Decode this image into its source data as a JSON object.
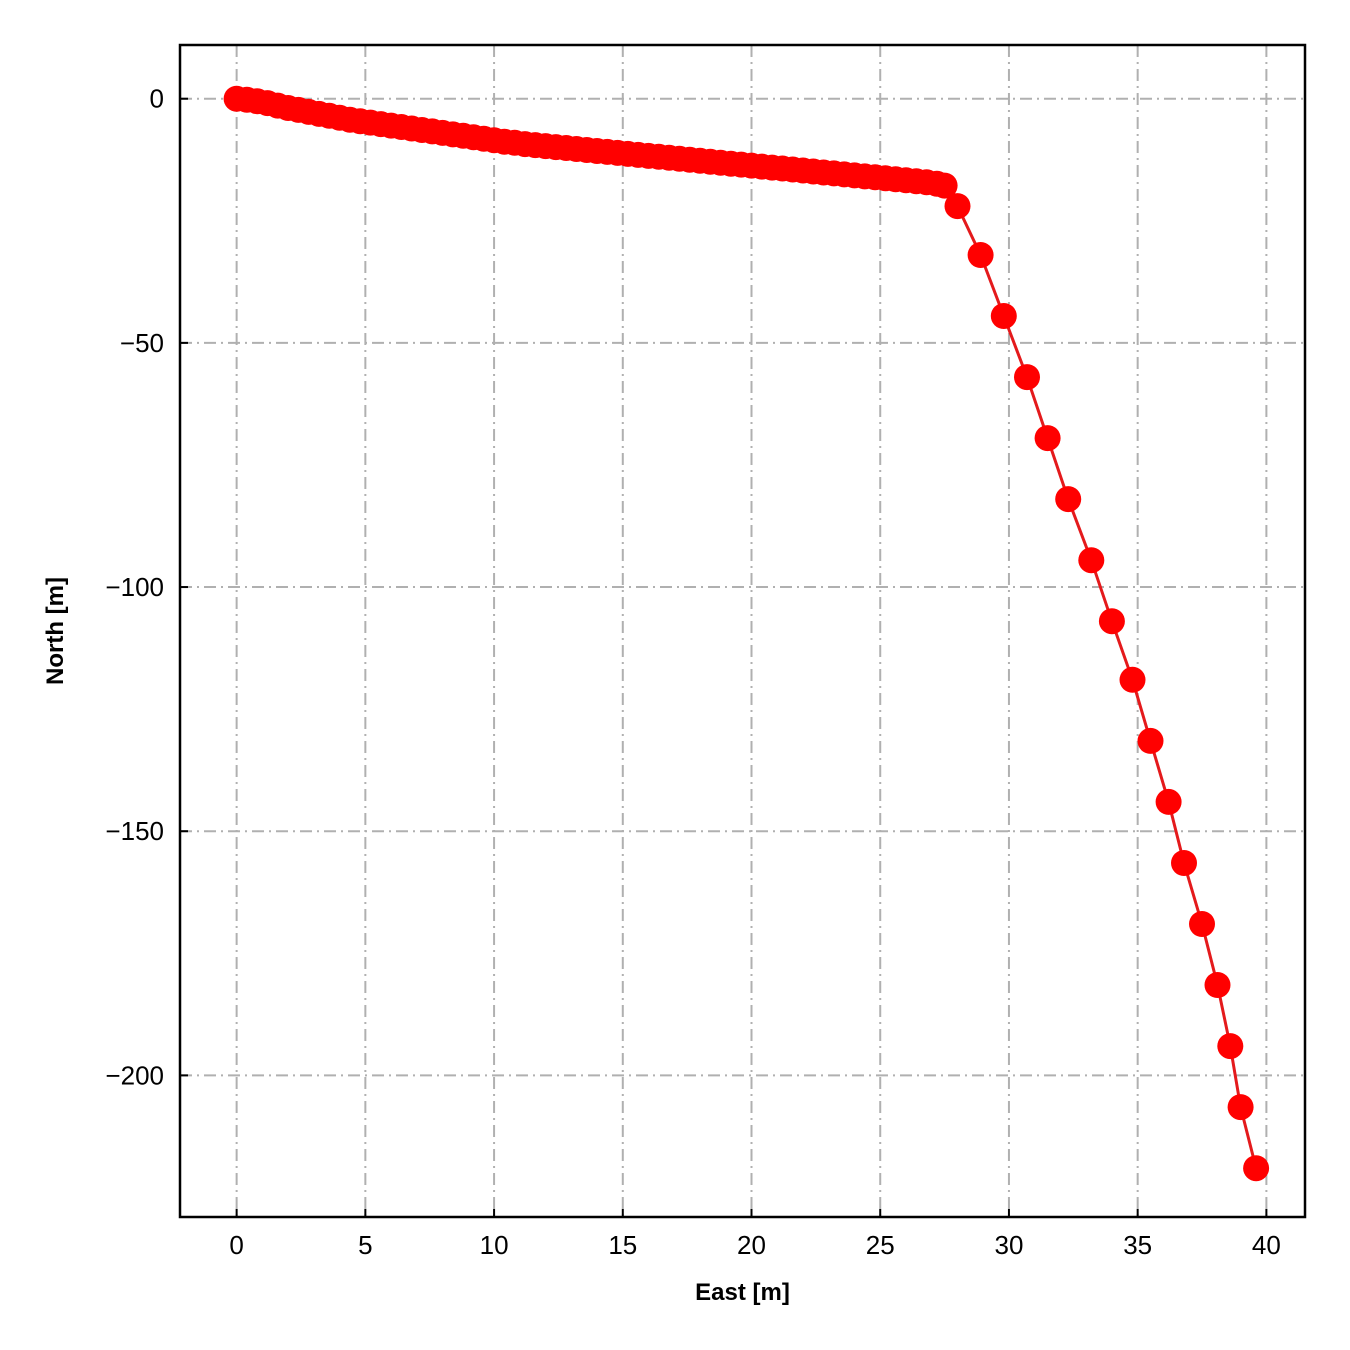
{
  "chart_data": {
    "type": "line",
    "xlabel": "East [m]",
    "ylabel": "North [m]",
    "xlim": [
      -2.2,
      41.5
    ],
    "ylim": [
      -229,
      11
    ],
    "grid": true,
    "grid_style": "dash-dot",
    "xticks": [
      0,
      5,
      10,
      15,
      20,
      25,
      30,
      35,
      40
    ],
    "yticks": [
      0,
      -50,
      -100,
      -150,
      -200
    ],
    "xtick_labels": [
      "0",
      "5",
      "10",
      "15",
      "20",
      "25",
      "30",
      "35",
      "40"
    ],
    "ytick_labels": [
      "0",
      "−50",
      "−100",
      "−150",
      "−200"
    ],
    "colors": {
      "series": "#ff0000",
      "line": "#e41a1c",
      "grid": "#b0b0b0"
    },
    "series": [
      {
        "marker": "circle",
        "x": [
          0,
          0.4,
          0.8,
          1.2,
          1.6,
          2.0,
          2.4,
          2.8,
          3.2,
          3.6,
          4.0,
          4.4,
          4.8,
          5.2,
          5.6,
          6.0,
          6.4,
          6.8,
          7.2,
          7.6,
          8.0,
          8.4,
          8.8,
          9.2,
          9.6,
          10.0,
          10.4,
          10.8,
          11.2,
          11.6,
          12.0,
          12.4,
          12.8,
          13.2,
          13.6,
          14.0,
          14.4,
          14.8,
          15.2,
          15.6,
          16.0,
          16.4,
          16.8,
          17.2,
          17.6,
          18.0,
          18.4,
          18.8,
          19.2,
          19.6,
          20.0,
          20.4,
          20.8,
          21.2,
          21.6,
          22.0,
          22.4,
          22.8,
          23.2,
          23.6,
          24.0,
          24.4,
          24.8,
          25.2,
          25.6,
          26.0,
          26.4,
          26.8,
          27.2,
          27.5,
          28.0,
          28.9,
          29.8,
          30.7,
          31.5,
          32.3,
          33.2,
          34.0,
          34.8,
          35.5,
          36.2,
          36.8,
          37.5,
          38.1,
          38.6,
          39.0,
          39.6
        ],
        "y": [
          0,
          -0.2,
          -0.5,
          -0.9,
          -1.4,
          -1.9,
          -2.3,
          -2.7,
          -3.1,
          -3.5,
          -3.9,
          -4.3,
          -4.6,
          -4.9,
          -5.2,
          -5.5,
          -5.8,
          -6.1,
          -6.4,
          -6.7,
          -7.0,
          -7.3,
          -7.6,
          -7.9,
          -8.2,
          -8.5,
          -8.8,
          -9.0,
          -9.3,
          -9.5,
          -9.7,
          -9.9,
          -10.1,
          -10.3,
          -10.5,
          -10.7,
          -10.9,
          -11.1,
          -11.3,
          -11.5,
          -11.7,
          -11.9,
          -12.1,
          -12.3,
          -12.5,
          -12.7,
          -12.9,
          -13.1,
          -13.3,
          -13.5,
          -13.7,
          -13.9,
          -14.1,
          -14.3,
          -14.5,
          -14.7,
          -14.9,
          -15.1,
          -15.3,
          -15.5,
          -15.7,
          -15.9,
          -16.1,
          -16.3,
          -16.5,
          -16.7,
          -16.9,
          -17.1,
          -17.4,
          -17.8,
          -22,
          -32,
          -44.5,
          -57,
          -69.5,
          -82,
          -94.5,
          -107,
          -119,
          -131.5,
          -144,
          -156.5,
          -169,
          -181.5,
          -194,
          -206.5,
          -219
        ]
      }
    ]
  }
}
